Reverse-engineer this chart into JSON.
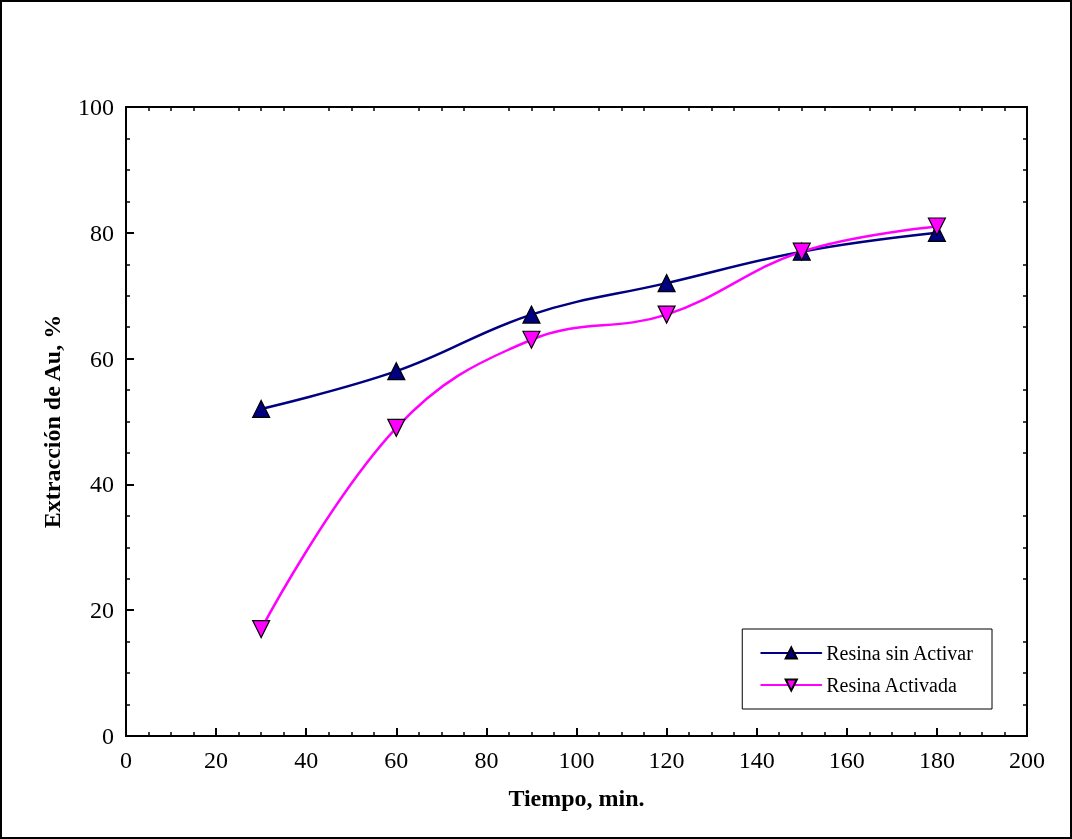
{
  "chart_data": {
    "type": "line",
    "xlabel": "Tiempo, min.",
    "ylabel": "Extracción de Au, %",
    "x": [
      30,
      60,
      90,
      120,
      150,
      180
    ],
    "series": [
      {
        "name": "Resina sin Activar",
        "color": "#000080",
        "marker": "triangle",
        "values": [
          52,
          58,
          67,
          72,
          77,
          80
        ]
      },
      {
        "name": "Resina Activada",
        "color": "#ff00ff",
        "marker": "triangle-down",
        "values": [
          17,
          49,
          63,
          67,
          77,
          81
        ]
      }
    ],
    "xlim": [
      0,
      200
    ],
    "xticks": [
      0,
      20,
      40,
      60,
      80,
      100,
      120,
      140,
      160,
      180,
      200
    ],
    "ylim": [
      0,
      100
    ],
    "yticks": [
      0,
      20,
      40,
      60,
      80,
      100
    ],
    "grid": false,
    "legend": "bottom right",
    "line_style": "solid"
  }
}
